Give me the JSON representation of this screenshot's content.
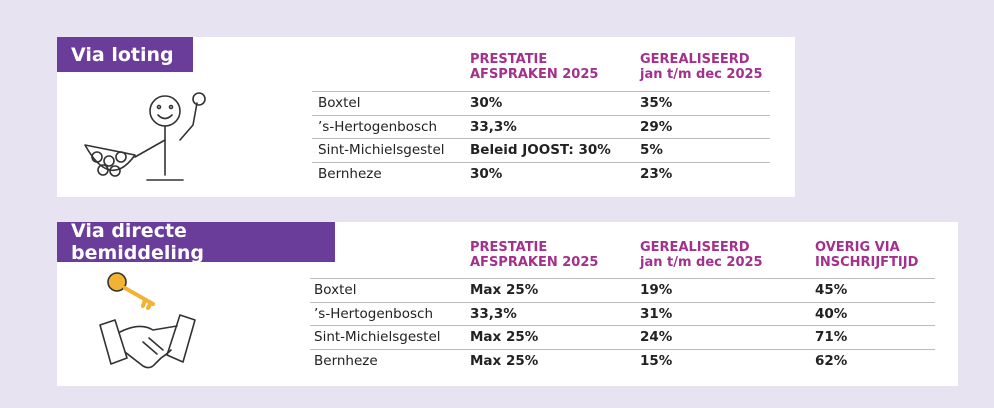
{
  "sections": [
    {
      "title": "Via loting",
      "headers": [
        [
          "PRESTATIE",
          "AFSPRAKEN 2025"
        ],
        [
          "GEREALISEERD",
          "jan t/m dec 2025"
        ]
      ],
      "rows": [
        {
          "name": "Boxtel",
          "values": [
            "30%",
            "35%"
          ]
        },
        {
          "name": "’s-Hertogenbosch",
          "values": [
            "33,3%",
            "29%"
          ]
        },
        {
          "name": "Sint-Michielsgestel",
          "values": [
            "Beleid JOOST: 30%",
            "5%"
          ]
        },
        {
          "name": "Bernheze",
          "values": [
            "30%",
            "23%"
          ]
        }
      ]
    },
    {
      "title": "Via directe bemiddeling",
      "headers": [
        [
          "PRESTATIE",
          "AFSPRAKEN 2025"
        ],
        [
          "GEREALISEERD",
          "jan t/m dec 2025"
        ],
        [
          "OVERIG VIA",
          "INSCHRIJFTIJD"
        ]
      ],
      "rows": [
        {
          "name": "Boxtel",
          "values": [
            "Max 25%",
            "19%",
            "45%"
          ]
        },
        {
          "name": "’s-Hertogenbosch",
          "values": [
            "33,3%",
            "31%",
            "40%"
          ]
        },
        {
          "name": "Sint-Michielsgestel",
          "values": [
            "Max 25%",
            "24%",
            "71%"
          ]
        },
        {
          "name": "Bernheze",
          "values": [
            "Max 25%",
            "15%",
            "62%"
          ]
        }
      ]
    }
  ]
}
